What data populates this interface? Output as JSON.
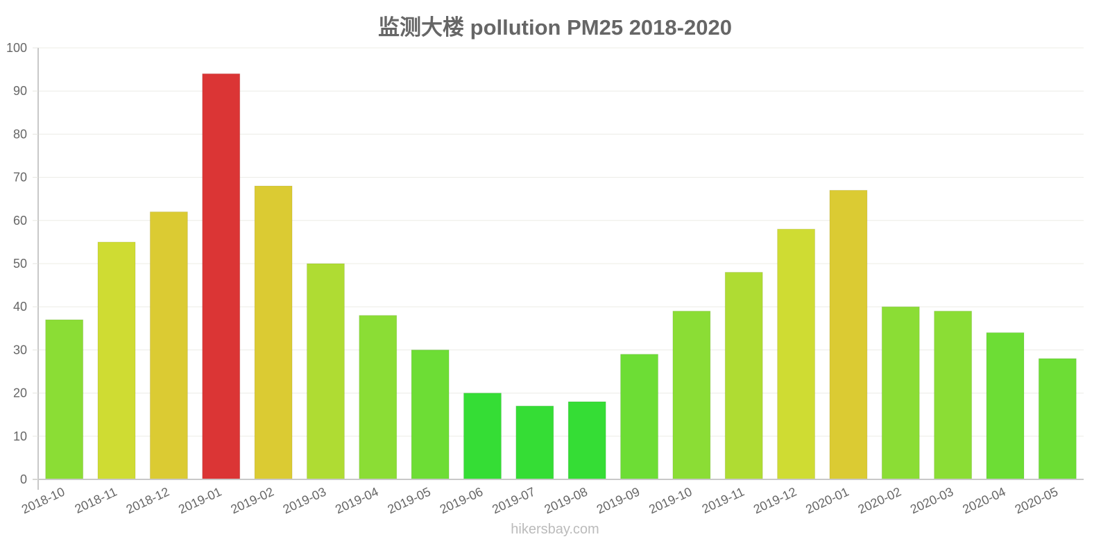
{
  "chart_data": {
    "type": "bar",
    "title": "监测大楼 pollution PM25 2018-2020",
    "xlabel": "",
    "ylabel": "",
    "ylim": [
      0,
      100
    ],
    "yticks": [
      0,
      10,
      20,
      30,
      40,
      50,
      60,
      70,
      80,
      90,
      100
    ],
    "grid": true,
    "legend": null,
    "categories": [
      "2018-10",
      "2018-11",
      "2018-12",
      "2019-01",
      "2019-02",
      "2019-03",
      "2019-04",
      "2019-05",
      "2019-06",
      "2019-07",
      "2019-08",
      "2019-09",
      "2019-10",
      "2019-11",
      "2019-12",
      "2020-01",
      "2020-02",
      "2020-03",
      "2020-04",
      "2020-05"
    ],
    "values": [
      37,
      55,
      62,
      94,
      68,
      50,
      38,
      30,
      20,
      17,
      18,
      29,
      39,
      48,
      58,
      67,
      40,
      39,
      34,
      28
    ],
    "colors": [
      "#8bdd35",
      "#cfdc33",
      "#dbcb33",
      "#db3535",
      "#dbcb33",
      "#afdc33",
      "#8bdd35",
      "#6ddd35",
      "#35dd35",
      "#35dd35",
      "#35dd35",
      "#6ddd35",
      "#8bdd35",
      "#afdc33",
      "#cfdc33",
      "#dbcb33",
      "#8bdd35",
      "#8bdd35",
      "#6ddd35",
      "#6ddd35"
    ]
  },
  "header": {
    "title": "监测大楼 pollution PM25 2018-2020"
  },
  "footer": {
    "source": "hikersbay.com"
  }
}
